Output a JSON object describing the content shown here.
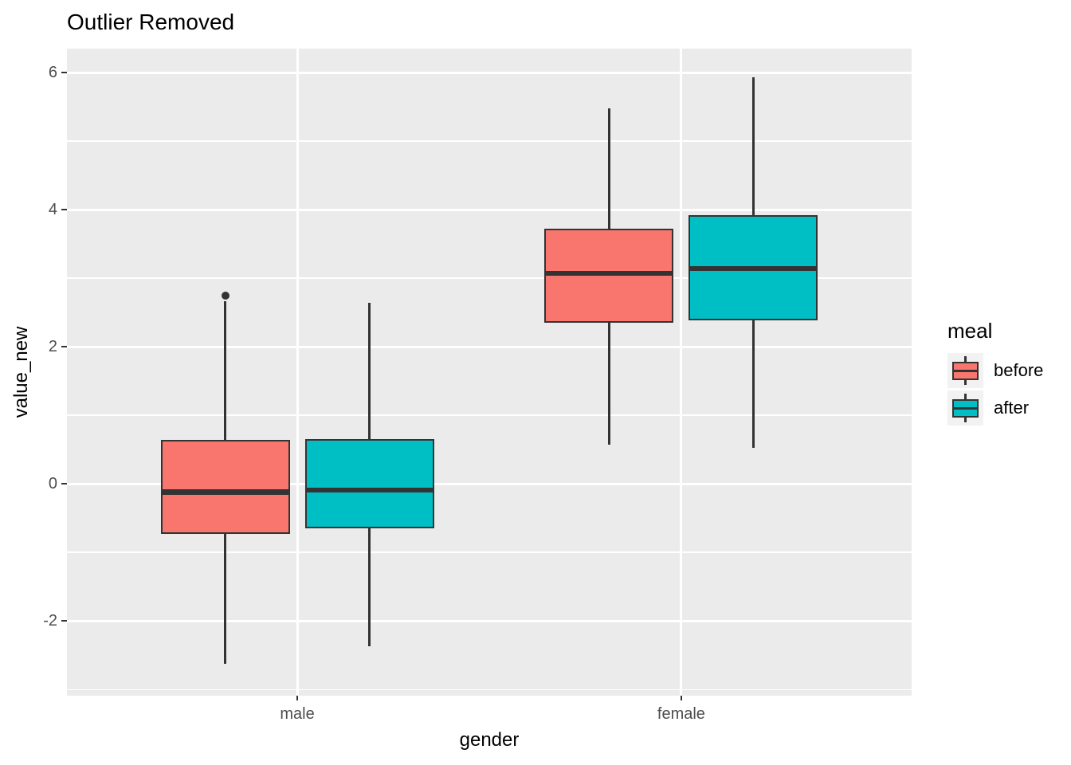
{
  "chart": {
    "title": "Outlier Removed",
    "xlabel": "gender",
    "ylabel": "value_new"
  },
  "legend": {
    "title": "meal",
    "items": [
      {
        "label": "before",
        "color": "#F8766D"
      },
      {
        "label": "after",
        "color": "#00BFC4"
      }
    ]
  },
  "colors": {
    "panel_background": "#EBEBEB",
    "gridline": "#FFFFFF",
    "box_outline": "#333333",
    "tick_text": "#4D4D4D",
    "before_fill": "#F8766D",
    "after_fill": "#00BFC4"
  },
  "chart_data": {
    "type": "boxplot",
    "title": "Outlier Removed",
    "xlabel": "gender",
    "ylabel": "value_new",
    "categories": [
      "male",
      "female"
    ],
    "yticks": [
      {
        "value": -2,
        "label": "-2"
      },
      {
        "value": 0,
        "label": "0"
      },
      {
        "value": 2,
        "label": "2"
      },
      {
        "value": 4,
        "label": "4"
      },
      {
        "value": 6,
        "label": "6"
      }
    ],
    "yticks_minor": [
      -3,
      -1,
      1,
      3,
      5
    ],
    "ylim": [
      -3.09,
      6.35
    ],
    "grid": true,
    "legend_position": "right",
    "series": [
      {
        "name": "before",
        "color": "#F8766D",
        "boxes": [
          {
            "category": "male",
            "whisker_low": -2.63,
            "q1": -0.73,
            "median": -0.12,
            "q3": 0.64,
            "whisker_high": 2.66,
            "outliers": [
              2.75
            ]
          },
          {
            "category": "female",
            "whisker_low": 0.57,
            "q1": 2.35,
            "median": 3.07,
            "q3": 3.72,
            "whisker_high": 5.48,
            "outliers": []
          }
        ]
      },
      {
        "name": "after",
        "color": "#00BFC4",
        "boxes": [
          {
            "category": "male",
            "whisker_low": -2.37,
            "q1": -0.65,
            "median": -0.09,
            "q3": 0.65,
            "whisker_high": 2.64,
            "outliers": []
          },
          {
            "category": "female",
            "whisker_low": 0.53,
            "q1": 2.38,
            "median": 3.14,
            "q3": 3.92,
            "whisker_high": 5.93,
            "outliers": []
          }
        ]
      }
    ]
  }
}
